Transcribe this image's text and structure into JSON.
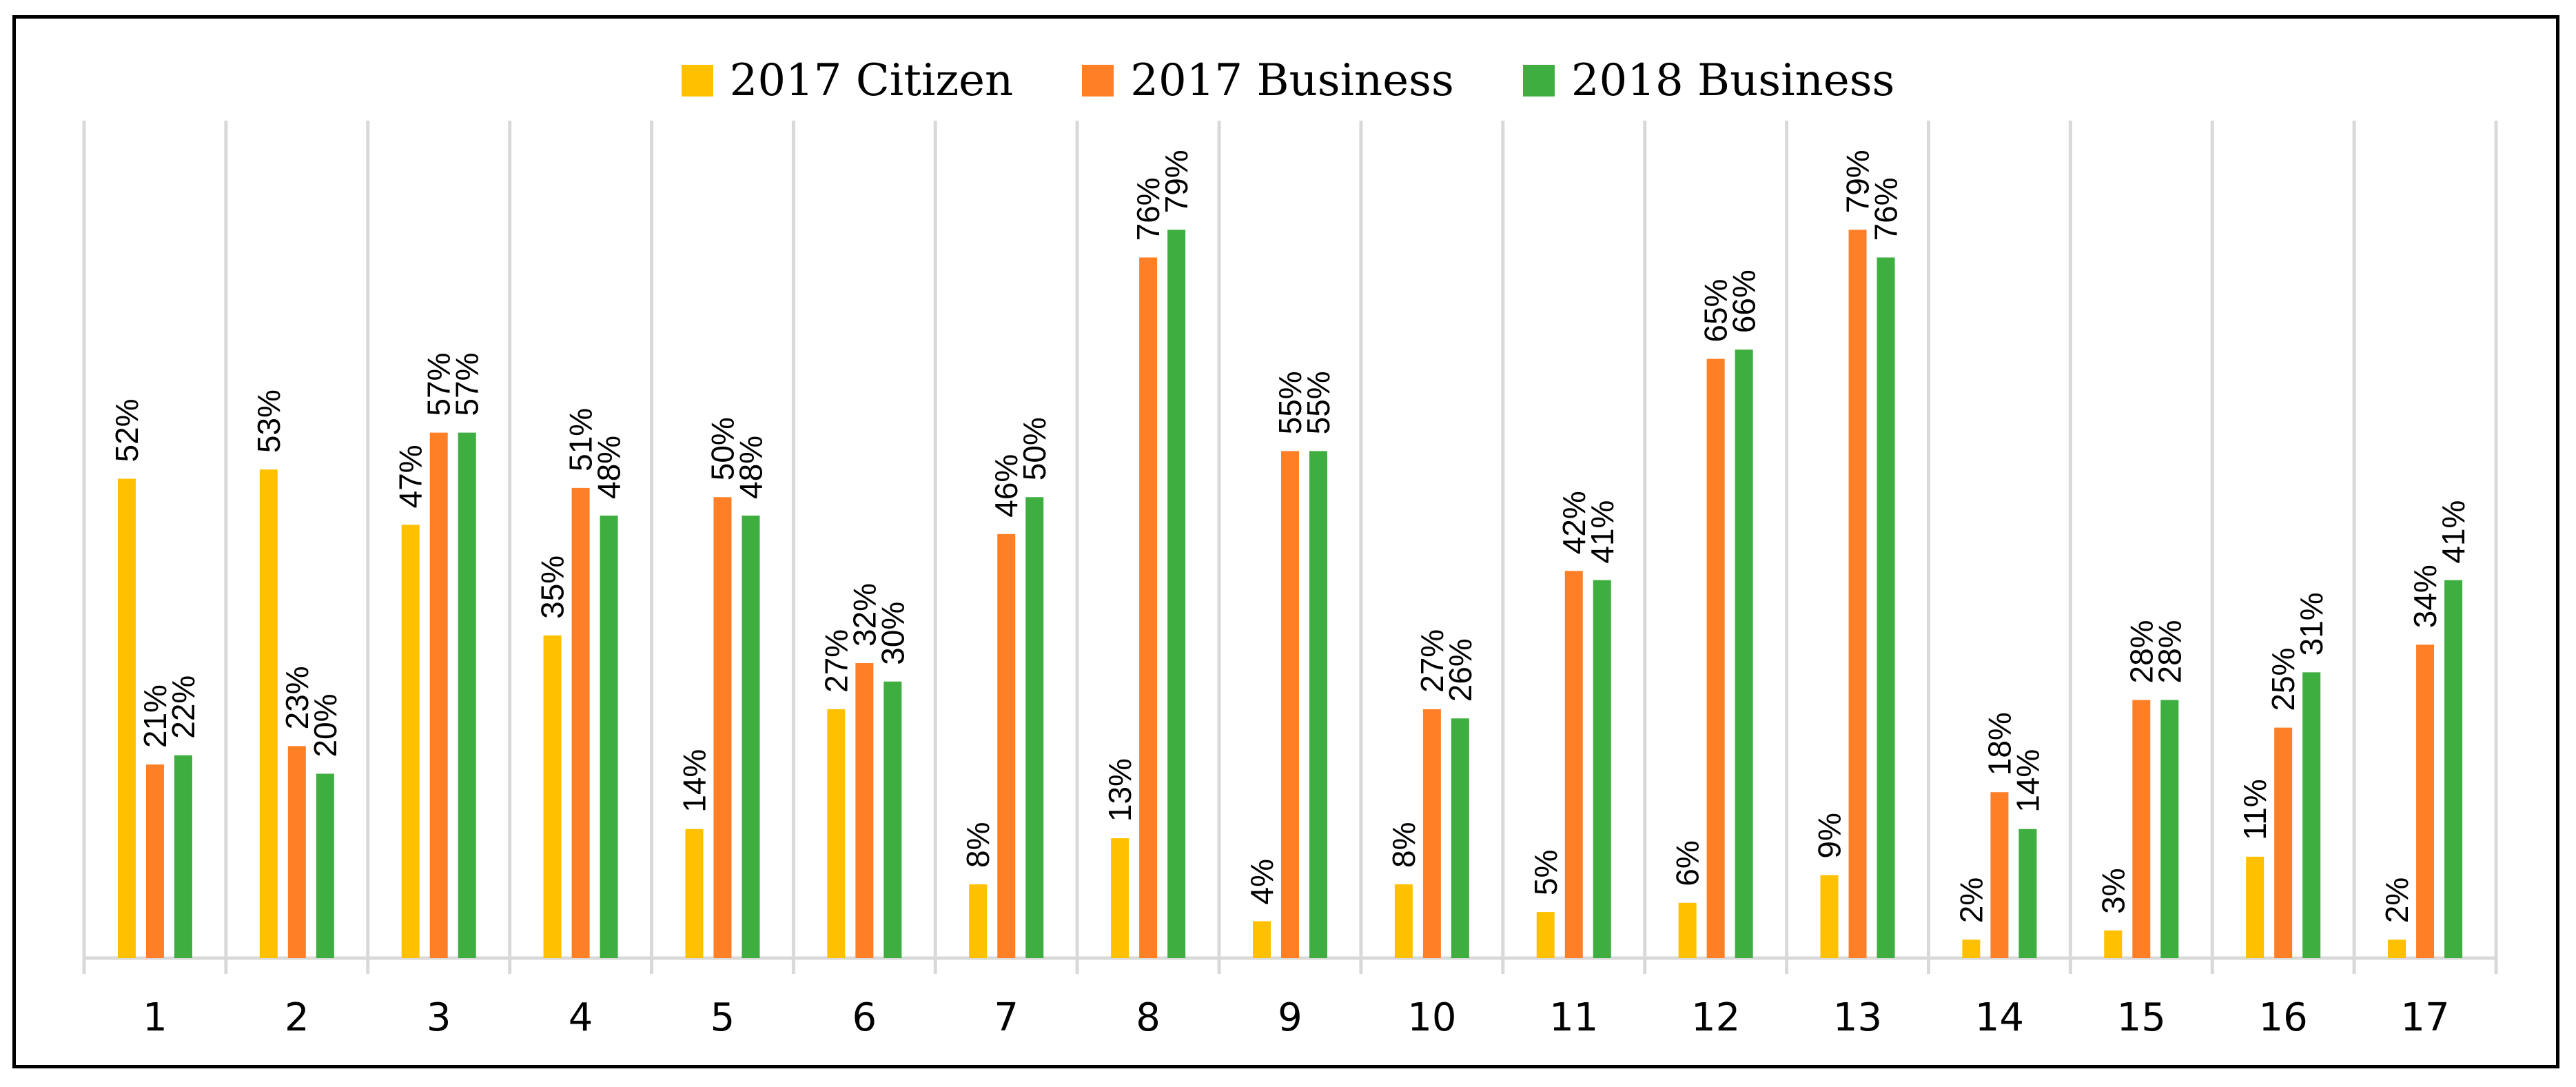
{
  "chart_data": {
    "type": "bar",
    "title": "",
    "xlabel": "",
    "ylabel": "",
    "ylim": [
      0,
      80
    ],
    "grid": "vertical separators between categories",
    "legend": "top-center",
    "categories": [
      "1",
      "2",
      "3",
      "4",
      "5",
      "6",
      "7",
      "8",
      "9",
      "10",
      "11",
      "12",
      "13",
      "14",
      "15",
      "16",
      "17"
    ],
    "series": [
      {
        "name": "2017 Citizen",
        "color": "#FFC000",
        "values": [
          52,
          53,
          47,
          35,
          14,
          27,
          8,
          13,
          4,
          8,
          5,
          6,
          9,
          2,
          3,
          11,
          2
        ],
        "labels": [
          "52%",
          "53%",
          "47%",
          "35%",
          "14%",
          "27%",
          "8%",
          "13%",
          "4%",
          "8%",
          "5%",
          "6%",
          "9%",
          "2%",
          "3%",
          "11%",
          "2%"
        ]
      },
      {
        "name": "2017 Business",
        "color": "#FF7F27",
        "values": [
          21,
          23,
          57,
          51,
          50,
          32,
          46,
          76,
          55,
          27,
          42,
          65,
          79,
          18,
          28,
          25,
          34
        ],
        "labels": [
          "21%",
          "23%",
          "57%",
          "51%",
          "50%",
          "32%",
          "46%",
          "76%",
          "55%",
          "27%",
          "42%",
          "65%",
          "79%",
          "18%",
          "28%",
          "25%",
          "34%"
        ]
      },
      {
        "name": "2018 Business",
        "color": "#3DAE3F",
        "values": [
          22,
          20,
          57,
          48,
          48,
          30,
          50,
          79,
          55,
          26,
          41,
          66,
          76,
          14,
          28,
          31,
          41
        ],
        "labels": [
          "22%",
          "20%",
          "57%",
          "48%",
          "48%",
          "30%",
          "50%",
          "79%",
          "55%",
          "26%",
          "41%",
          "66%",
          "76%",
          "14%",
          "28%",
          "31%",
          "41%"
        ]
      }
    ]
  }
}
